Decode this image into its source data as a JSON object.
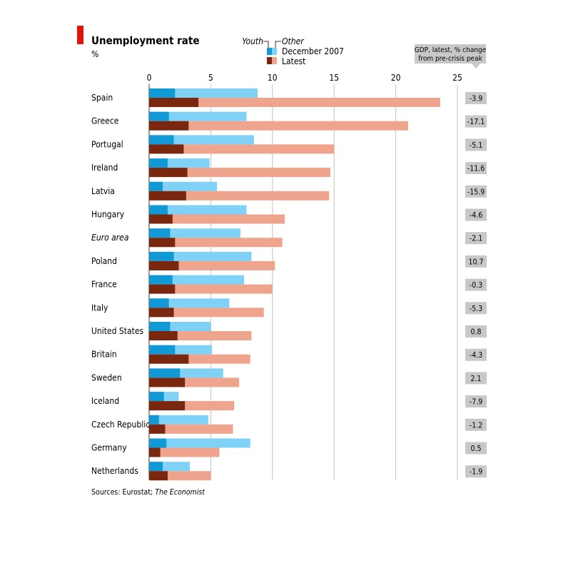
{
  "chart_data": {
    "type": "bar",
    "title": "Unemployment rate",
    "subtitle": "%",
    "categories": [
      "Spain",
      "Greece",
      "Portugal",
      "Ireland",
      "Latvia",
      "Hungary",
      "Euro area",
      "Poland",
      "France",
      "Italy",
      "United States",
      "Britain",
      "Sweden",
      "Iceland",
      "Czech Republic",
      "Germany",
      "Netherlands"
    ],
    "italic_categories": [
      "Euro area"
    ],
    "x_ticks": [
      0,
      5,
      10,
      15,
      20,
      25
    ],
    "xlim": [
      0,
      25
    ],
    "grid": true,
    "legend_position": "top-center",
    "legend": {
      "youth_label": "Youth",
      "other_label": "Other",
      "dec_label": "December 2007",
      "latest_label": "Latest"
    },
    "series": [
      {
        "name": "December 2007",
        "youth": [
          2.1,
          1.6,
          2.0,
          1.5,
          1.1,
          1.5,
          1.7,
          2.0,
          1.9,
          1.6,
          1.7,
          2.1,
          2.5,
          1.2,
          0.8,
          1.4,
          1.1
        ],
        "values": [
          8.8,
          7.9,
          8.5,
          4.9,
          5.5,
          7.9,
          7.4,
          8.3,
          7.7,
          6.5,
          5.0,
          5.1,
          6.0,
          2.4,
          4.8,
          8.2,
          3.3
        ]
      },
      {
        "name": "Latest",
        "youth": [
          4.0,
          3.2,
          2.8,
          3.1,
          3.0,
          1.9,
          2.1,
          2.4,
          2.1,
          2.0,
          2.3,
          3.2,
          2.9,
          2.9,
          1.3,
          0.9,
          1.5
        ],
        "values": [
          23.6,
          21.0,
          15.0,
          14.7,
          14.6,
          11.0,
          10.8,
          10.2,
          10.0,
          9.3,
          8.3,
          8.2,
          7.3,
          6.9,
          6.8,
          5.7,
          5.0
        ]
      }
    ],
    "gdp_header": [
      "GDP, latest, % change",
      "from pre-crisis peak"
    ],
    "gdp_values": [
      "-3.9",
      "-17.1",
      "-5.1",
      "-11.6",
      "-15.9",
      "-4.6",
      "-2.1",
      "10.7",
      "-0.3",
      "-5.3",
      "0.8",
      "-4.3",
      "2.1",
      "-7.9",
      "-1.2",
      "0.5",
      "-1.9"
    ],
    "source_prefix": "Sources: Eurostat; ",
    "source_italic": "The Economist",
    "colors": {
      "accent_red": "#e3120b",
      "dec_youth": "#1199d6",
      "dec_other": "#7fd2f5",
      "latest_youth": "#7a2710",
      "latest_other": "#eea48d",
      "gdp_box": "#c8c8c8",
      "grid": "#c2c2c2"
    }
  }
}
